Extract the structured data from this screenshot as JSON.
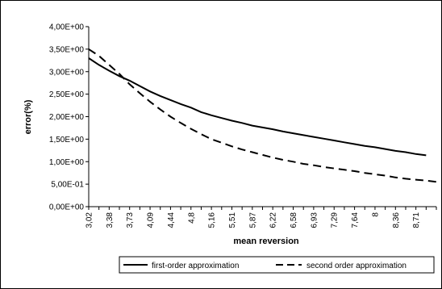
{
  "chart_data": {
    "type": "line",
    "title": "",
    "xlabel": "mean reversion",
    "ylabel": "error(%)",
    "x": [
      3.02,
      3.2,
      3.38,
      3.56,
      3.73,
      3.91,
      4.09,
      4.27,
      4.44,
      4.62,
      4.8,
      4.98,
      5.16,
      5.34,
      5.51,
      5.69,
      5.87,
      6.05,
      6.22,
      6.4,
      6.58,
      6.75,
      6.93,
      7.11,
      7.29,
      7.47,
      7.64,
      7.82,
      8.0,
      8.18,
      8.36,
      8.53,
      8.71,
      8.89,
      9.07
    ],
    "x_tick_labels": [
      "3,02",
      "3,38",
      "3,73",
      "4,09",
      "4,44",
      "4,8",
      "5,16",
      "5,51",
      "5,87",
      "6,22",
      "6,58",
      "6,93",
      "7,29",
      "7,64",
      "8",
      "8,36",
      "8,71"
    ],
    "y_tick_labels": [
      "0,00E+00",
      "5,00E-01",
      "1,00E+00",
      "1,50E+00",
      "2,00E+00",
      "2,50E+00",
      "3,00E+00",
      "3,50E+00",
      "4,00E+00"
    ],
    "ylim": [
      0,
      4
    ],
    "series": [
      {
        "name": "first-order approximation",
        "style": "solid",
        "values": [
          3.3,
          3.15,
          3.02,
          2.9,
          2.8,
          2.68,
          2.56,
          2.46,
          2.37,
          2.28,
          2.2,
          2.1,
          2.03,
          1.97,
          1.91,
          1.86,
          1.8,
          1.76,
          1.72,
          1.67,
          1.63,
          1.59,
          1.55,
          1.51,
          1.47,
          1.43,
          1.39,
          1.35,
          1.32,
          1.28,
          1.24,
          1.21,
          1.17,
          1.14,
          null
        ]
      },
      {
        "name": "second order approximation",
        "style": "dashed",
        "values": [
          3.5,
          3.35,
          3.15,
          2.95,
          2.72,
          2.52,
          2.33,
          2.16,
          2.0,
          1.86,
          1.73,
          1.61,
          1.5,
          1.42,
          1.34,
          1.27,
          1.21,
          1.15,
          1.09,
          1.04,
          1.0,
          0.95,
          0.92,
          0.88,
          0.85,
          0.82,
          0.79,
          0.75,
          0.72,
          0.69,
          0.65,
          0.62,
          0.6,
          0.58,
          0.55
        ]
      }
    ],
    "grid": false,
    "legend": "bottom"
  }
}
